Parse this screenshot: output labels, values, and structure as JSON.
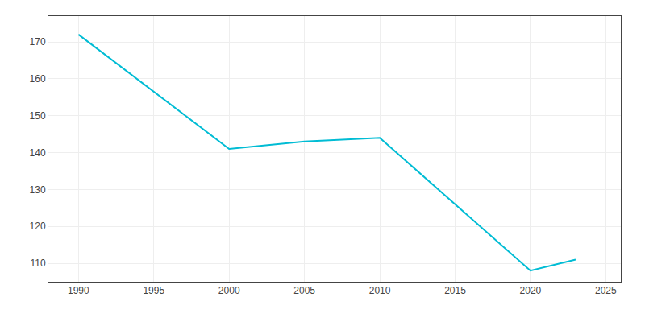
{
  "chart_data": {
    "type": "line",
    "x": [
      1990,
      2000,
      2005,
      2010,
      2020,
      2021,
      2023
    ],
    "values": [
      172,
      141,
      143,
      144,
      108,
      109,
      111
    ],
    "color": "#00bcd4",
    "xlim": [
      1988,
      2026
    ],
    "ylim": [
      105,
      177
    ],
    "xticks": [
      1990,
      1995,
      2000,
      2005,
      2010,
      2015,
      2020,
      2025
    ],
    "yticks": [
      110,
      120,
      130,
      140,
      150,
      160,
      170
    ],
    "grid": true
  }
}
